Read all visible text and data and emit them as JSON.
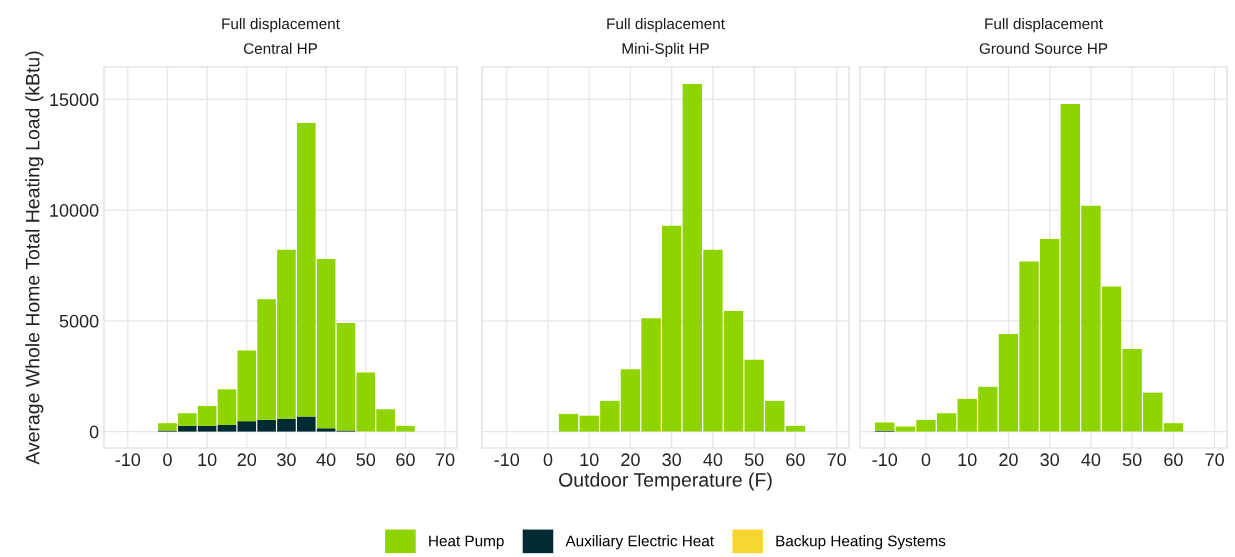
{
  "chart_data": [
    {
      "type": "bar",
      "title": "Full displacement",
      "subtitle": "Central HP",
      "ylabel": "Average Whole Home Total Heating Load (kBtu)",
      "stacked": true,
      "x": [
        0,
        5,
        10,
        15,
        20,
        25,
        30,
        35,
        40,
        45,
        50,
        55,
        60
      ],
      "series": [
        {
          "color": "#022a33",
          "values": [
            50,
            260,
            260,
            300,
            470,
            530,
            570,
            680,
            150,
            50,
            null,
            null,
            null
          ]
        },
        {
          "color": "#8fd400",
          "values": [
            330,
            570,
            900,
            1610,
            3190,
            5450,
            7640,
            13250,
            7640,
            4850,
            2670,
            1010,
            260
          ]
        }
      ],
      "xlim": [
        -16,
        73
      ],
      "xticks": [
        -10,
        0,
        10,
        20,
        30,
        40,
        50,
        60,
        70
      ],
      "ylim": [
        -740,
        16460
      ],
      "yticks": [
        0,
        5000,
        10000,
        15000
      ],
      "grid": true
    },
    {
      "type": "bar",
      "title": "Full displacement",
      "subtitle": "Mini-Split HP",
      "xlabel": "Outdoor Temperature (F)",
      "stacked": true,
      "x": [
        5,
        10,
        15,
        20,
        25,
        30,
        35,
        40,
        45,
        50,
        55,
        60
      ],
      "series": [
        {
          "name": "Heat Pump",
          "color": "#8fd400",
          "values": [
            800,
            720,
            1390,
            2820,
            5120,
            9290,
            15690,
            8210,
            5450,
            3240,
            1390,
            260
          ]
        },
        {
          "name": "Auxiliary Electric Heat",
          "color": "#022a33",
          "values": [
            null,
            null,
            null,
            null,
            null,
            null,
            null,
            null,
            null,
            null,
            null,
            null
          ]
        },
        {
          "name": "Backup Heating Systems",
          "color": "#f7d531",
          "values": [
            null,
            null,
            null,
            null,
            null,
            null,
            null,
            null,
            null,
            null,
            null,
            null
          ]
        }
      ],
      "xlim": [
        -16,
        73
      ],
      "xticks": [
        -10,
        0,
        10,
        20,
        30,
        40,
        50,
        60,
        70
      ],
      "ylim": [
        -740,
        16460
      ],
      "yticks": [
        0,
        5000,
        10000,
        15000
      ],
      "grid": true,
      "tick_labels": "x",
      "legend": "bottom"
    },
    {
      "type": "bar",
      "title": "Full displacement",
      "subtitle": "Ground Source HP",
      "stacked": true,
      "x": [
        -10,
        -5,
        0,
        5,
        10,
        15,
        20,
        25,
        30,
        35,
        40,
        45,
        50,
        55,
        60
      ],
      "series": [
        {
          "color": "#022a33",
          "values": [
            40,
            null,
            null,
            null,
            null,
            null,
            null,
            null,
            null,
            null,
            null,
            null,
            null,
            null,
            null
          ]
        },
        {
          "color": "#8fd400",
          "values": [
            370,
            230,
            530,
            830,
            1480,
            2020,
            4410,
            7680,
            8690,
            14790,
            10200,
            6550,
            3730,
            1760,
            380
          ]
        }
      ],
      "xlim": [
        -16,
        73
      ],
      "xticks": [
        -10,
        0,
        10,
        20,
        30,
        40,
        50,
        60,
        70
      ],
      "ylim": [
        -740,
        16460
      ],
      "yticks": [
        0,
        5000,
        10000,
        15000
      ],
      "grid": true,
      "tick_labels": "x"
    }
  ]
}
